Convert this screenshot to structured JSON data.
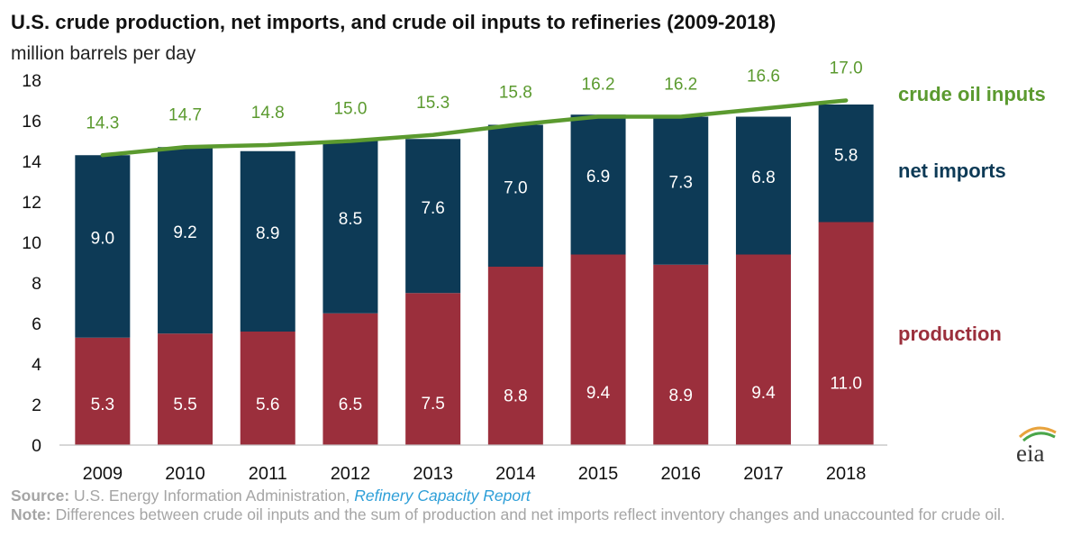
{
  "title": "U.S. crude production, net imports, and crude oil inputs to refineries (2009-2018)",
  "subtitle": "million barrels per day",
  "logo_text": "eia",
  "source": {
    "label": "Source:",
    "text": "U.S. Energy Information Administration,",
    "report": "Refinery Capacity Report"
  },
  "note": {
    "label": "Note:",
    "text": "Differences between crude oil inputs and the sum of production and net imports reflect inventory changes and unaccounted for crude oil."
  },
  "colors": {
    "production": "#9b2f3c",
    "net_imports": "#0d3a56",
    "crude_oil_inputs": "#5b9a2f",
    "axis_text": "#111111",
    "bar_label": "#ffffff"
  },
  "chart_data": {
    "type": "bar",
    "stacked": true,
    "title": "U.S. crude production, net imports, and crude oil inputs to refineries (2009-2018)",
    "ylabel": "million barrels per day",
    "xlabel": "",
    "ylim": [
      0,
      18
    ],
    "yticks": [
      0,
      2,
      4,
      6,
      8,
      10,
      12,
      14,
      16,
      18
    ],
    "grid": false,
    "categories": [
      "2009",
      "2010",
      "2011",
      "2012",
      "2013",
      "2014",
      "2015",
      "2016",
      "2017",
      "2018"
    ],
    "series": [
      {
        "name": "production",
        "type": "bar",
        "values": [
          5.3,
          5.5,
          5.6,
          6.5,
          7.5,
          8.8,
          9.4,
          8.9,
          9.4,
          11.0
        ],
        "labels": [
          "5.3",
          "5.5",
          "5.6",
          "6.5",
          "7.5",
          "8.8",
          "9.4",
          "8.9",
          "9.4",
          "11.0"
        ]
      },
      {
        "name": "net imports",
        "type": "bar",
        "values": [
          9.0,
          9.2,
          8.9,
          8.5,
          7.6,
          7.0,
          6.9,
          7.3,
          6.8,
          5.8
        ],
        "labels": [
          "9.0",
          "9.2",
          "8.9",
          "8.5",
          "7.6",
          "7.0",
          "6.9",
          "7.3",
          "6.8",
          "5.8"
        ]
      },
      {
        "name": "crude oil inputs",
        "type": "line",
        "values": [
          14.3,
          14.7,
          14.8,
          15.0,
          15.3,
          15.8,
          16.2,
          16.2,
          16.6,
          17.0
        ],
        "labels": [
          "14.3",
          "14.7",
          "14.8",
          "15.0",
          "15.3",
          "15.8",
          "16.2",
          "16.2",
          "16.6",
          "17.0"
        ]
      }
    ],
    "legend": "direct labels at right of plot"
  }
}
